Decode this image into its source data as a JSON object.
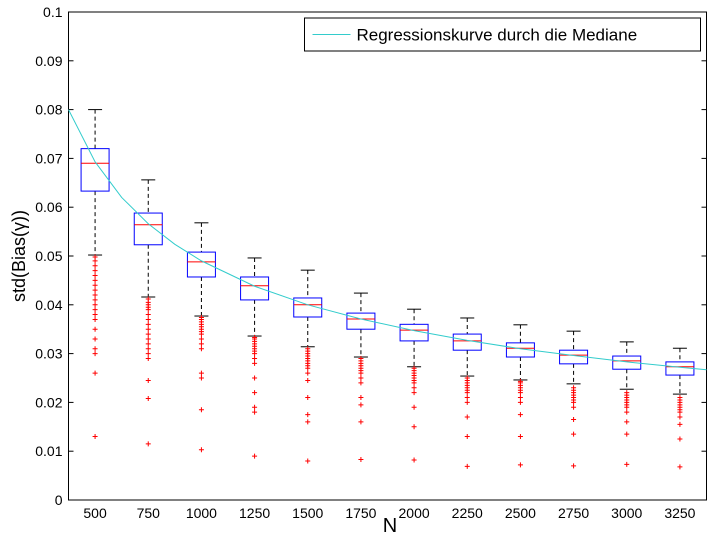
{
  "chart_data": {
    "type": "box",
    "xlabel": "N",
    "ylabel": "std(Bias(γ))",
    "xlim": [
      375,
      3375
    ],
    "xticks": [
      500,
      750,
      1000,
      1250,
      1500,
      1750,
      2000,
      2250,
      2500,
      2750,
      3000,
      3250
    ],
    "ylim": [
      0,
      0.1
    ],
    "yticks": [
      0,
      0.01,
      0.02,
      0.03,
      0.04,
      0.05,
      0.06,
      0.07,
      0.08,
      0.09,
      0.1
    ],
    "box_color": "#0000ff",
    "median_color": "#ff0000",
    "whisker_color": "#000000",
    "outlier_color": "#ff0000",
    "boxes": {
      "x": [
        500,
        750,
        1000,
        1250,
        1500,
        1750,
        2000,
        2250,
        2500,
        2750,
        3000,
        3250
      ],
      "whisker_low": [
        0.0502,
        0.0416,
        0.0377,
        0.0336,
        0.0314,
        0.0293,
        0.0273,
        0.0254,
        0.0246,
        0.0238,
        0.0227,
        0.0217
      ],
      "q1": [
        0.0633,
        0.0523,
        0.0457,
        0.041,
        0.0375,
        0.035,
        0.0326,
        0.0307,
        0.0293,
        0.0279,
        0.0268,
        0.0256
      ],
      "median": [
        0.069,
        0.0564,
        0.0488,
        0.0439,
        0.04,
        0.0371,
        0.0348,
        0.0326,
        0.0311,
        0.0297,
        0.0285,
        0.0273
      ],
      "q3": [
        0.072,
        0.0588,
        0.0508,
        0.0457,
        0.0414,
        0.0383,
        0.036,
        0.034,
        0.0322,
        0.0307,
        0.0295,
        0.0283
      ],
      "whisker_high": [
        0.08,
        0.0656,
        0.0568,
        0.0496,
        0.0471,
        0.0424,
        0.0391,
        0.0373,
        0.0359,
        0.0346,
        0.0324,
        0.0311
      ],
      "outliers": [
        [
          0.0498,
          0.049,
          0.048,
          0.047,
          0.046,
          0.045,
          0.044,
          0.043,
          0.042,
          0.041,
          0.04,
          0.039,
          0.038,
          0.037,
          0.035,
          0.033,
          0.031,
          0.03,
          0.026,
          0.013
        ],
        [
          0.0412,
          0.0405,
          0.04,
          0.0395,
          0.039,
          0.038,
          0.037,
          0.036,
          0.035,
          0.034,
          0.033,
          0.032,
          0.031,
          0.03,
          0.029,
          0.0245,
          0.0208,
          0.0115
        ],
        [
          0.0374,
          0.037,
          0.0365,
          0.036,
          0.0355,
          0.035,
          0.0345,
          0.034,
          0.033,
          0.032,
          0.031,
          0.026,
          0.025,
          0.0185,
          0.0103
        ],
        [
          0.0333,
          0.033,
          0.0325,
          0.032,
          0.0315,
          0.031,
          0.0305,
          0.03,
          0.029,
          0.028,
          0.025,
          0.022,
          0.019,
          0.018,
          0.009
        ],
        [
          0.031,
          0.0305,
          0.03,
          0.0295,
          0.029,
          0.0285,
          0.028,
          0.0275,
          0.027,
          0.026,
          0.0245,
          0.021,
          0.0175,
          0.016,
          0.008
        ],
        [
          0.029,
          0.0285,
          0.028,
          0.0275,
          0.027,
          0.0265,
          0.026,
          0.025,
          0.024,
          0.021,
          0.0195,
          0.016,
          0.0083
        ],
        [
          0.027,
          0.0265,
          0.026,
          0.0255,
          0.025,
          0.0245,
          0.024,
          0.023,
          0.022,
          0.019,
          0.015,
          0.0082
        ],
        [
          0.025,
          0.0245,
          0.024,
          0.0235,
          0.023,
          0.0225,
          0.022,
          0.021,
          0.02,
          0.017,
          0.013,
          0.0069
        ],
        [
          0.0243,
          0.024,
          0.0235,
          0.023,
          0.0225,
          0.022,
          0.021,
          0.02,
          0.0175,
          0.013,
          0.0072
        ],
        [
          0.023,
          0.0225,
          0.022,
          0.0215,
          0.021,
          0.0205,
          0.02,
          0.019,
          0.0165,
          0.0135,
          0.007
        ],
        [
          0.022,
          0.0215,
          0.021,
          0.0205,
          0.02,
          0.0195,
          0.019,
          0.018,
          0.016,
          0.0135,
          0.0073
        ],
        [
          0.021,
          0.0205,
          0.02,
          0.0195,
          0.019,
          0.0185,
          0.018,
          0.017,
          0.0155,
          0.0125,
          0.0068
        ]
      ]
    },
    "series": [
      {
        "name": "Regressionskurve durch die Mediane",
        "color": "#33cccc",
        "x": [
          375,
          500,
          625,
          750,
          875,
          1000,
          1250,
          1500,
          1750,
          2000,
          2250,
          2500,
          2750,
          3000,
          3250,
          3375
        ],
        "values": [
          0.08,
          0.0693,
          0.062,
          0.0566,
          0.0524,
          0.049,
          0.0438,
          0.04,
          0.0371,
          0.0347,
          0.0327,
          0.031,
          0.0296,
          0.0283,
          0.0272,
          0.0267
        ]
      }
    ],
    "legend": "upper right"
  }
}
